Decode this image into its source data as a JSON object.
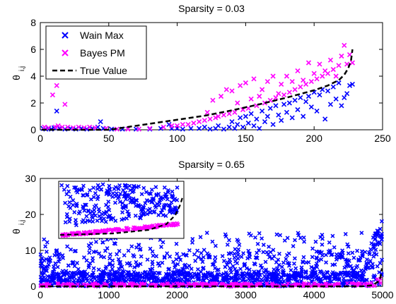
{
  "chart_data": [
    {
      "type": "scatter",
      "title": "Sparsity = 0.03",
      "ylabel_main": "θ",
      "ylabel_sub": "i,j",
      "xlim": [
        0,
        250
      ],
      "ylim": [
        0,
        8
      ],
      "xticks": [
        0,
        50,
        100,
        150,
        200,
        250
      ],
      "yticks": [
        0,
        2,
        4,
        6,
        8
      ],
      "legend_position": "top-left",
      "series": [
        {
          "name": "Wain Max",
          "color": "#0000ff",
          "marker": "x",
          "points": [
            [
              2,
              0.1
            ],
            [
              4,
              0.05
            ],
            [
              6,
              0.1
            ],
            [
              8,
              0.05
            ],
            [
              10,
              0.15
            ],
            [
              12,
              1.4
            ],
            [
              14,
              0.1
            ],
            [
              18,
              0.05
            ],
            [
              22,
              0.1
            ],
            [
              26,
              0.05
            ],
            [
              30,
              0.1
            ],
            [
              34,
              0.05
            ],
            [
              38,
              0.1
            ],
            [
              42,
              0.2
            ],
            [
              44,
              0.6
            ],
            [
              46,
              0.1
            ],
            [
              52,
              0.05
            ],
            [
              60,
              0.05
            ],
            [
              70,
              0.05
            ],
            [
              80,
              0.05
            ],
            [
              88,
              0.1
            ],
            [
              94,
              0.4
            ],
            [
              96,
              0.1
            ],
            [
              100,
              0.1
            ],
            [
              104,
              0.05
            ],
            [
              110,
              0.1
            ],
            [
              116,
              0.1
            ],
            [
              120,
              0.2
            ],
            [
              124,
              0.05
            ],
            [
              128,
              0.1
            ],
            [
              130,
              0.3
            ],
            [
              134,
              0.05
            ],
            [
              138,
              0.2
            ],
            [
              140,
              0.6
            ],
            [
              142,
              0.1
            ],
            [
              144,
              0.4
            ],
            [
              146,
              0.9
            ],
            [
              148,
              0.2
            ],
            [
              150,
              1.0
            ],
            [
              152,
              0.5
            ],
            [
              154,
              1.2
            ],
            [
              156,
              0.3
            ],
            [
              158,
              0.8
            ],
            [
              160,
              0.1
            ],
            [
              162,
              1.4
            ],
            [
              164,
              0.6
            ],
            [
              166,
              1.0
            ],
            [
              168,
              1.6
            ],
            [
              170,
              0.4
            ],
            [
              172,
              1.8
            ],
            [
              174,
              1.1
            ],
            [
              176,
              0.7
            ],
            [
              178,
              1.9
            ],
            [
              180,
              1.3
            ],
            [
              182,
              2.0
            ],
            [
              184,
              0.9
            ],
            [
              186,
              2.2
            ],
            [
              188,
              1.5
            ],
            [
              190,
              2.4
            ],
            [
              192,
              1.0
            ],
            [
              194,
              2.1
            ],
            [
              196,
              2.5
            ],
            [
              198,
              1.7
            ],
            [
              200,
              2.8
            ],
            [
              202,
              1.4
            ],
            [
              204,
              2.6
            ],
            [
              206,
              3.0
            ],
            [
              208,
              0.8
            ],
            [
              210,
              2.9
            ],
            [
              212,
              1.9
            ],
            [
              214,
              3.2
            ],
            [
              216,
              2.3
            ],
            [
              218,
              3.5
            ],
            [
              220,
              1.8
            ],
            [
              222,
              2.4
            ],
            [
              224,
              2.7
            ],
            [
              226,
              3.3
            ],
            [
              228,
              3.4
            ]
          ]
        },
        {
          "name": "Bayes PM",
          "color": "#ff00ff",
          "marker": "x",
          "points": [
            [
              3,
              0.2
            ],
            [
              6,
              0.15
            ],
            [
              9,
              2.6
            ],
            [
              11,
              0.2
            ],
            [
              12,
              3.3
            ],
            [
              13,
              0.3
            ],
            [
              16,
              0.2
            ],
            [
              18,
              1.9
            ],
            [
              20,
              0.2
            ],
            [
              24,
              0.15
            ],
            [
              28,
              0.2
            ],
            [
              32,
              0.15
            ],
            [
              36,
              0.2
            ],
            [
              40,
              0.15
            ],
            [
              48,
              0.1
            ],
            [
              56,
              0.05
            ],
            [
              64,
              0.05
            ],
            [
              72,
              0.05
            ],
            [
              80,
              0.1
            ],
            [
              90,
              0.2
            ],
            [
              96,
              0.3
            ],
            [
              100,
              0.3
            ],
            [
              104,
              0.4
            ],
            [
              108,
              0.4
            ],
            [
              112,
              0.5
            ],
            [
              116,
              0.6
            ],
            [
              120,
              0.7
            ],
            [
              122,
              1.3
            ],
            [
              124,
              0.8
            ],
            [
              126,
              2.2
            ],
            [
              128,
              0.9
            ],
            [
              130,
              1.0
            ],
            [
              132,
              2.5
            ],
            [
              134,
              1.1
            ],
            [
              136,
              3.0
            ],
            [
              138,
              1.2
            ],
            [
              140,
              2.9
            ],
            [
              142,
              1.3
            ],
            [
              144,
              2.0
            ],
            [
              146,
              3.3
            ],
            [
              148,
              1.5
            ],
            [
              150,
              3.5
            ],
            [
              152,
              1.6
            ],
            [
              154,
              2.3
            ],
            [
              156,
              3.8
            ],
            [
              158,
              1.8
            ],
            [
              160,
              2.5
            ],
            [
              162,
              3.0
            ],
            [
              164,
              2.0
            ],
            [
              166,
              3.6
            ],
            [
              168,
              2.2
            ],
            [
              170,
              4.0
            ],
            [
              172,
              2.4
            ],
            [
              174,
              2.7
            ],
            [
              176,
              3.4
            ],
            [
              178,
              2.6
            ],
            [
              180,
              4.0
            ],
            [
              182,
              2.8
            ],
            [
              184,
              3.6
            ],
            [
              186,
              3.0
            ],
            [
              188,
              4.4
            ],
            [
              190,
              3.2
            ],
            [
              192,
              3.7
            ],
            [
              194,
              3.4
            ],
            [
              196,
              5.0
            ],
            [
              198,
              3.6
            ],
            [
              200,
              4.2
            ],
            [
              202,
              3.8
            ],
            [
              204,
              4.9
            ],
            [
              206,
              4.0
            ],
            [
              208,
              4.4
            ],
            [
              210,
              4.2
            ],
            [
              212,
              5.2
            ],
            [
              214,
              4.5
            ],
            [
              216,
              4.0
            ],
            [
              218,
              4.8
            ],
            [
              220,
              5.5
            ],
            [
              222,
              6.3
            ],
            [
              224,
              4.9
            ],
            [
              226,
              5.6
            ],
            [
              228,
              5.0
            ]
          ]
        },
        {
          "name": "True Value",
          "color": "#000000",
          "style": "dashed",
          "points": [
            [
              1,
              0.0
            ],
            [
              50,
              0.0
            ],
            [
              60,
              0.15
            ],
            [
              80,
              0.45
            ],
            [
              100,
              0.75
            ],
            [
              120,
              1.05
            ],
            [
              140,
              1.45
            ],
            [
              160,
              1.9
            ],
            [
              180,
              2.4
            ],
            [
              200,
              2.95
            ],
            [
              210,
              3.3
            ],
            [
              218,
              3.7
            ],
            [
              222,
              4.1
            ],
            [
              225,
              4.6
            ],
            [
              227,
              5.2
            ],
            [
              228,
              6.0
            ]
          ]
        }
      ]
    },
    {
      "type": "scatter",
      "title": "Sparsity = 0.65",
      "ylabel_main": "θ",
      "ylabel_sub": "i,j",
      "xlim": [
        0,
        5000
      ],
      "ylim": [
        0,
        30
      ],
      "xticks": [
        0,
        1000,
        2000,
        3000,
        4000,
        5000
      ],
      "yticks": [
        0,
        10,
        20,
        30
      ],
      "has_inset": true,
      "series": [
        {
          "name": "Wain Max",
          "color": "#0000ff",
          "marker": "x"
        },
        {
          "name": "Bayes PM",
          "color": "#ff00ff",
          "marker": "x"
        },
        {
          "name": "True Value",
          "color": "#000000",
          "style": "dashed"
        }
      ]
    }
  ]
}
